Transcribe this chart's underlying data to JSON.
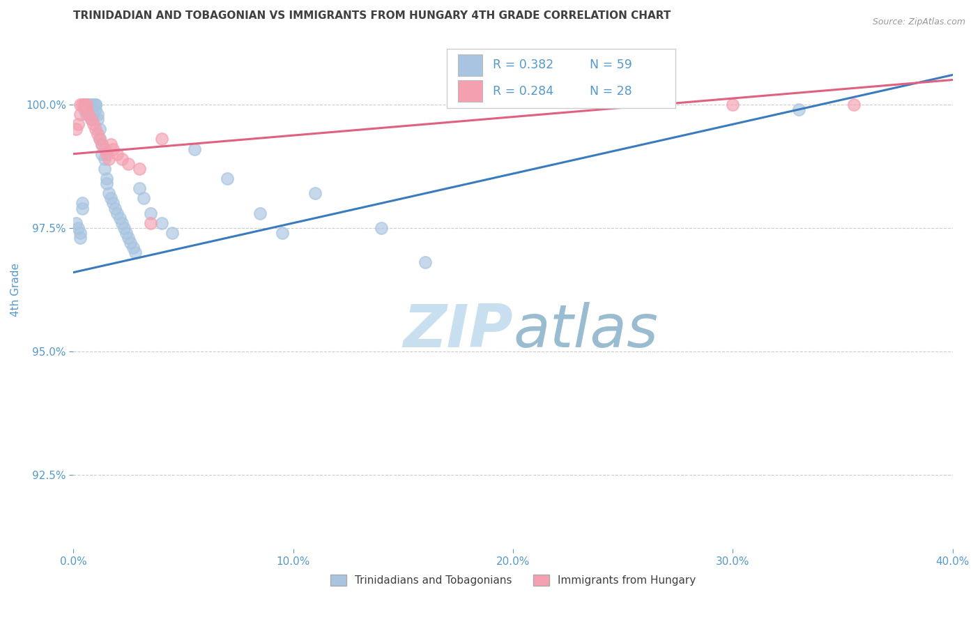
{
  "title": "TRINIDADIAN AND TOBAGONIAN VS IMMIGRANTS FROM HUNGARY 4TH GRADE CORRELATION CHART",
  "source_text": "Source: ZipAtlas.com",
  "ylabel": "4th Grade",
  "x_tick_labels": [
    "0.0%",
    "10.0%",
    "20.0%",
    "30.0%",
    "40.0%"
  ],
  "x_tick_vals": [
    0.0,
    10.0,
    20.0,
    30.0,
    40.0
  ],
  "y_tick_labels": [
    "92.5%",
    "95.0%",
    "97.5%",
    "100.0%"
  ],
  "y_tick_vals": [
    92.5,
    95.0,
    97.5,
    100.0
  ],
  "xlim": [
    0.0,
    40.0
  ],
  "ylim": [
    91.0,
    101.5
  ],
  "legend_labels": [
    "Trinidadians and Tobagonians",
    "Immigrants from Hungary"
  ],
  "legend_R": [
    0.382,
    0.284
  ],
  "legend_N": [
    59,
    28
  ],
  "blue_color": "#a8c4e0",
  "pink_color": "#f4a0b0",
  "blue_line_color": "#3a7bbf",
  "pink_line_color": "#e06080",
  "title_color": "#404040",
  "axis_color": "#5599cc",
  "grid_color": "#cccccc",
  "watermark_color": "#d8eaf5",
  "blue_scatter_x": [
    0.1,
    0.2,
    0.3,
    0.3,
    0.4,
    0.4,
    0.5,
    0.5,
    0.5,
    0.6,
    0.6,
    0.6,
    0.7,
    0.7,
    0.8,
    0.8,
    0.8,
    0.9,
    0.9,
    1.0,
    1.0,
    1.0,
    1.1,
    1.1,
    1.2,
    1.2,
    1.3,
    1.3,
    1.4,
    1.4,
    1.5,
    1.5,
    1.6,
    1.7,
    1.8,
    1.9,
    2.0,
    2.1,
    2.2,
    2.3,
    2.4,
    2.5,
    2.6,
    2.7,
    2.8,
    3.0,
    3.2,
    3.5,
    4.0,
    4.5,
    5.5,
    7.0,
    8.5,
    9.5,
    11.0,
    14.0,
    16.0,
    24.5,
    33.0
  ],
  "blue_scatter_y": [
    97.6,
    97.5,
    97.4,
    97.3,
    97.9,
    98.0,
    100.0,
    100.0,
    99.9,
    100.0,
    100.0,
    99.8,
    100.0,
    99.9,
    100.0,
    100.0,
    99.7,
    100.0,
    99.8,
    100.0,
    100.0,
    99.9,
    99.8,
    99.7,
    99.5,
    99.3,
    99.2,
    99.0,
    98.9,
    98.7,
    98.5,
    98.4,
    98.2,
    98.1,
    98.0,
    97.9,
    97.8,
    97.7,
    97.6,
    97.5,
    97.4,
    97.3,
    97.2,
    97.1,
    97.0,
    98.3,
    98.1,
    97.8,
    97.6,
    97.4,
    99.1,
    98.5,
    97.8,
    97.4,
    98.2,
    97.5,
    96.8,
    100.3,
    99.9
  ],
  "pink_scatter_x": [
    0.1,
    0.2,
    0.3,
    0.3,
    0.4,
    0.5,
    0.6,
    0.6,
    0.7,
    0.8,
    0.9,
    1.0,
    1.1,
    1.2,
    1.3,
    1.4,
    1.5,
    1.6,
    1.7,
    1.8,
    2.0,
    2.2,
    2.5,
    3.0,
    3.5,
    4.0,
    30.0,
    35.5
  ],
  "pink_scatter_y": [
    99.5,
    99.6,
    100.0,
    99.8,
    100.0,
    100.0,
    100.0,
    99.9,
    99.8,
    99.7,
    99.6,
    99.5,
    99.4,
    99.3,
    99.2,
    99.1,
    99.0,
    98.9,
    99.2,
    99.1,
    99.0,
    98.9,
    98.8,
    98.7,
    97.6,
    99.3,
    100.0,
    100.0
  ],
  "blue_trend_x": [
    0.0,
    40.0
  ],
  "blue_trend_y": [
    96.6,
    100.6
  ],
  "pink_trend_x": [
    0.0,
    40.0
  ],
  "pink_trend_y": [
    99.0,
    100.5
  ]
}
